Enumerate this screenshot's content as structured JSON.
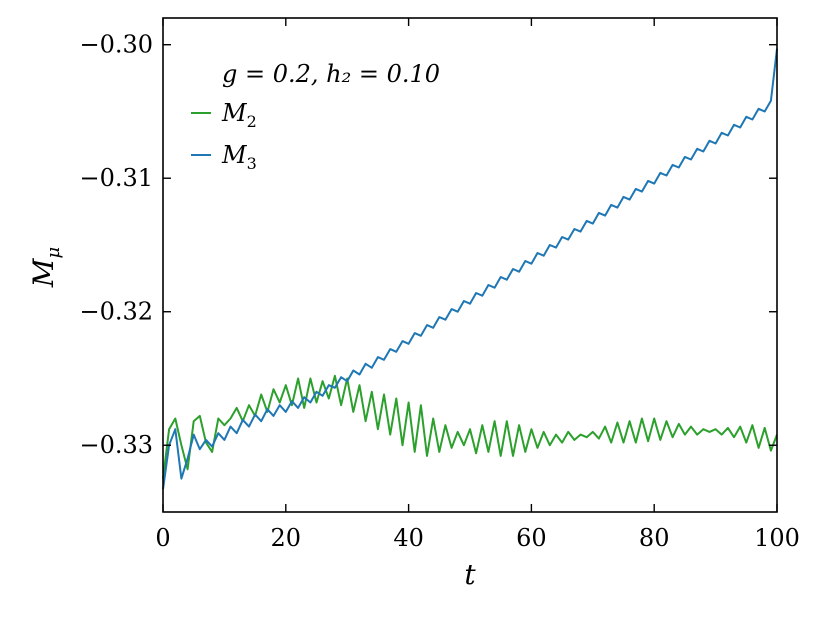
{
  "chart_data": {
    "type": "line",
    "title": "",
    "xlabel": "t",
    "ylabel": "M_μ",
    "ylabel_main": "M",
    "ylabel_sub": "μ",
    "xlim": [
      0,
      100
    ],
    "ylim": [
      -0.335,
      -0.298
    ],
    "xticks": [
      0,
      20,
      40,
      60,
      80,
      100
    ],
    "xtick_labels": [
      "0",
      "20",
      "40",
      "60",
      "80",
      "100"
    ],
    "yticks": [
      -0.33,
      -0.32,
      -0.31,
      -0.3
    ],
    "ytick_labels": [
      "−0.33",
      "−0.32",
      "−0.31",
      "−0.30"
    ],
    "grid": false,
    "legend_position": "top-left",
    "legend_title": "g = 0.2, h₂ = 0.10",
    "series": [
      {
        "name": "M₂",
        "name_main": "M",
        "name_sub": "2",
        "color": "#2ca02c",
        "x": [
          0,
          1,
          2,
          3,
          4,
          5,
          6,
          7,
          8,
          9,
          10,
          11,
          12,
          13,
          14,
          15,
          16,
          17,
          18,
          19,
          20,
          21,
          22,
          23,
          24,
          25,
          26,
          27,
          28,
          29,
          30,
          31,
          32,
          33,
          34,
          35,
          36,
          37,
          38,
          39,
          40,
          41,
          42,
          43,
          44,
          45,
          46,
          47,
          48,
          49,
          50,
          51,
          52,
          53,
          54,
          55,
          56,
          57,
          58,
          59,
          60,
          61,
          62,
          63,
          64,
          65,
          66,
          67,
          68,
          69,
          70,
          71,
          72,
          73,
          74,
          75,
          76,
          77,
          78,
          79,
          80,
          81,
          82,
          83,
          84,
          85,
          86,
          87,
          88,
          89,
          90,
          91,
          92,
          93,
          94,
          95,
          96,
          97,
          98,
          99,
          100
        ],
        "y": [
          -0.3325,
          -0.3288,
          -0.328,
          -0.33,
          -0.3318,
          -0.3282,
          -0.3278,
          -0.3298,
          -0.3305,
          -0.328,
          -0.3285,
          -0.328,
          -0.3272,
          -0.3282,
          -0.327,
          -0.3278,
          -0.3262,
          -0.3275,
          -0.3258,
          -0.3268,
          -0.3255,
          -0.327,
          -0.325,
          -0.3272,
          -0.325,
          -0.3268,
          -0.3252,
          -0.3265,
          -0.3248,
          -0.327,
          -0.325,
          -0.3275,
          -0.3255,
          -0.3282,
          -0.326,
          -0.3288,
          -0.3262,
          -0.3292,
          -0.3265,
          -0.33,
          -0.3268,
          -0.3305,
          -0.327,
          -0.3308,
          -0.328,
          -0.3305,
          -0.3285,
          -0.3302,
          -0.329,
          -0.33,
          -0.3288,
          -0.3306,
          -0.3285,
          -0.3305,
          -0.3282,
          -0.3308,
          -0.3282,
          -0.3308,
          -0.3285,
          -0.3305,
          -0.3288,
          -0.3302,
          -0.329,
          -0.33,
          -0.3292,
          -0.3298,
          -0.329,
          -0.3296,
          -0.3292,
          -0.3294,
          -0.329,
          -0.3295,
          -0.3286,
          -0.3298,
          -0.3283,
          -0.3298,
          -0.3282,
          -0.3298,
          -0.328,
          -0.3297,
          -0.328,
          -0.3296,
          -0.3282,
          -0.3294,
          -0.3284,
          -0.3292,
          -0.3286,
          -0.3292,
          -0.3288,
          -0.329,
          -0.3288,
          -0.3292,
          -0.3287,
          -0.3294,
          -0.3286,
          -0.3298,
          -0.3285,
          -0.3302,
          -0.3287,
          -0.3304,
          -0.3292
        ]
      },
      {
        "name": "M₃",
        "name_main": "M",
        "name_sub": "3",
        "color": "#1f77b4",
        "x": [
          0,
          1,
          2,
          3,
          4,
          5,
          6,
          7,
          8,
          9,
          10,
          11,
          12,
          13,
          14,
          15,
          16,
          17,
          18,
          19,
          20,
          21,
          22,
          23,
          24,
          25,
          26,
          27,
          28,
          29,
          30,
          31,
          32,
          33,
          34,
          35,
          36,
          37,
          38,
          39,
          40,
          41,
          42,
          43,
          44,
          45,
          46,
          47,
          48,
          49,
          50,
          51,
          52,
          53,
          54,
          55,
          56,
          57,
          58,
          59,
          60,
          61,
          62,
          63,
          64,
          65,
          66,
          67,
          68,
          69,
          70,
          71,
          72,
          73,
          74,
          75,
          76,
          77,
          78,
          79,
          80,
          81,
          82,
          83,
          84,
          85,
          86,
          87,
          88,
          89,
          90,
          91,
          92,
          93,
          94,
          95,
          96,
          97,
          98,
          99,
          100
        ],
        "y": [
          -0.3333,
          -0.33,
          -0.3288,
          -0.3325,
          -0.331,
          -0.3292,
          -0.3303,
          -0.3296,
          -0.3301,
          -0.3291,
          -0.3296,
          -0.3286,
          -0.3291,
          -0.3281,
          -0.3286,
          -0.3277,
          -0.3282,
          -0.3273,
          -0.3278,
          -0.327,
          -0.3275,
          -0.3267,
          -0.3272,
          -0.3264,
          -0.3268,
          -0.326,
          -0.3263,
          -0.3255,
          -0.3257,
          -0.3249,
          -0.3252,
          -0.3244,
          -0.3247,
          -0.3239,
          -0.3242,
          -0.3234,
          -0.3236,
          -0.3228,
          -0.323,
          -0.3222,
          -0.3224,
          -0.3216,
          -0.3218,
          -0.321,
          -0.3212,
          -0.3204,
          -0.3206,
          -0.3198,
          -0.32,
          -0.3192,
          -0.3194,
          -0.3186,
          -0.3188,
          -0.318,
          -0.3182,
          -0.3174,
          -0.3176,
          -0.3168,
          -0.317,
          -0.3162,
          -0.3164,
          -0.3156,
          -0.3158,
          -0.315,
          -0.3152,
          -0.3144,
          -0.3146,
          -0.3138,
          -0.314,
          -0.3132,
          -0.3134,
          -0.3126,
          -0.3128,
          -0.312,
          -0.3122,
          -0.3114,
          -0.3116,
          -0.3108,
          -0.311,
          -0.3102,
          -0.3104,
          -0.3096,
          -0.3098,
          -0.309,
          -0.3092,
          -0.3084,
          -0.3086,
          -0.3078,
          -0.308,
          -0.3072,
          -0.3074,
          -0.3066,
          -0.3068,
          -0.306,
          -0.3062,
          -0.3054,
          -0.3056,
          -0.3048,
          -0.305,
          -0.3042,
          -0.3003
        ]
      }
    ]
  }
}
